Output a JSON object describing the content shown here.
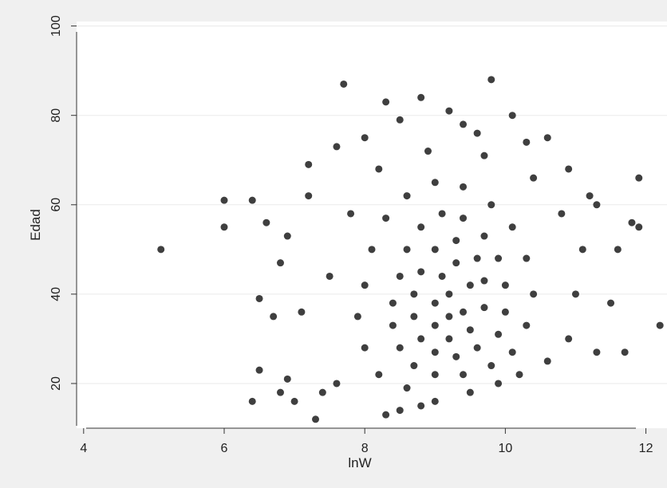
{
  "chart_data": {
    "type": "scatter",
    "title": "",
    "xlabel": "lnW",
    "ylabel": "Edad",
    "xlim": [
      3.9,
      12.3
    ],
    "ylim": [
      10,
      101
    ],
    "xticks": [
      4,
      6,
      8,
      10,
      12
    ],
    "yticks": [
      20,
      40,
      60,
      80,
      100
    ],
    "grid": "horizontal",
    "legend": "none",
    "colors": {
      "marker": "#3f3f3f",
      "plot_bg": "#ffffff",
      "outer_bg": "#f0f0f0",
      "grid": "#eaeaea",
      "axis": "#333333"
    },
    "series": [
      {
        "points": [
          [
            5.1,
            50
          ],
          [
            6.0,
            55
          ],
          [
            6.0,
            61
          ],
          [
            6.4,
            61
          ],
          [
            6.6,
            56
          ],
          [
            6.4,
            16
          ],
          [
            6.5,
            23
          ],
          [
            6.5,
            39
          ],
          [
            6.7,
            35
          ],
          [
            6.8,
            18
          ],
          [
            6.9,
            21
          ],
          [
            6.8,
            47
          ],
          [
            6.9,
            53
          ],
          [
            7.0,
            16
          ],
          [
            7.1,
            36
          ],
          [
            7.2,
            62
          ],
          [
            7.2,
            69
          ],
          [
            7.3,
            12
          ],
          [
            7.7,
            87
          ],
          [
            9.8,
            88
          ],
          [
            8.8,
            84
          ],
          [
            8.3,
            83
          ],
          [
            9.6,
            76
          ],
          [
            10.1,
            80
          ],
          [
            10.3,
            74
          ],
          [
            10.6,
            75
          ],
          [
            10.9,
            68
          ],
          [
            11.2,
            62
          ],
          [
            11.3,
            60
          ],
          [
            11.6,
            50
          ],
          [
            11.8,
            56
          ],
          [
            11.9,
            55
          ],
          [
            11.9,
            66
          ],
          [
            12.2,
            33
          ],
          [
            11.7,
            27
          ],
          [
            11.5,
            38
          ],
          [
            11.3,
            27
          ],
          [
            7.6,
            73
          ],
          [
            8.0,
            75
          ],
          [
            8.5,
            79
          ],
          [
            9.2,
            81
          ],
          [
            9.4,
            78
          ],
          [
            7.4,
            18
          ],
          [
            7.6,
            20
          ],
          [
            8.3,
            13
          ],
          [
            8.5,
            14
          ],
          [
            8.8,
            15
          ],
          [
            7.5,
            44
          ],
          [
            7.8,
            58
          ],
          [
            8.2,
            68
          ],
          [
            8.9,
            72
          ],
          [
            9.7,
            71
          ],
          [
            10.4,
            66
          ],
          [
            10.8,
            58
          ],
          [
            11.1,
            50
          ],
          [
            11.0,
            40
          ],
          [
            10.9,
            30
          ],
          [
            10.6,
            25
          ],
          [
            10.2,
            22
          ],
          [
            9.9,
            20
          ],
          [
            9.5,
            18
          ],
          [
            9.0,
            16
          ],
          [
            8.6,
            19
          ],
          [
            8.2,
            22
          ],
          [
            8.0,
            28
          ],
          [
            7.9,
            35
          ],
          [
            8.0,
            42
          ],
          [
            8.1,
            50
          ],
          [
            8.3,
            57
          ],
          [
            8.6,
            62
          ],
          [
            9.0,
            65
          ],
          [
            9.4,
            64
          ],
          [
            9.8,
            60
          ],
          [
            10.1,
            55
          ],
          [
            10.3,
            48
          ],
          [
            10.4,
            40
          ],
          [
            10.3,
            33
          ],
          [
            10.1,
            27
          ],
          [
            9.8,
            24
          ],
          [
            9.4,
            22
          ],
          [
            9.0,
            22
          ],
          [
            8.7,
            24
          ],
          [
            8.5,
            28
          ],
          [
            8.4,
            33
          ],
          [
            8.4,
            38
          ],
          [
            8.5,
            44
          ],
          [
            8.6,
            50
          ],
          [
            8.8,
            55
          ],
          [
            9.1,
            58
          ],
          [
            9.4,
            57
          ],
          [
            9.7,
            53
          ],
          [
            9.9,
            48
          ],
          [
            10.0,
            42
          ],
          [
            10.0,
            36
          ],
          [
            9.9,
            31
          ],
          [
            9.6,
            28
          ],
          [
            9.3,
            26
          ],
          [
            9.0,
            27
          ],
          [
            8.8,
            30
          ],
          [
            8.7,
            35
          ],
          [
            8.7,
            40
          ],
          [
            8.8,
            45
          ],
          [
            9.0,
            50
          ],
          [
            9.3,
            52
          ],
          [
            9.6,
            48
          ],
          [
            9.7,
            43
          ],
          [
            9.7,
            37
          ],
          [
            9.5,
            32
          ],
          [
            9.2,
            30
          ],
          [
            9.0,
            33
          ],
          [
            9.0,
            38
          ],
          [
            9.1,
            44
          ],
          [
            9.3,
            47
          ],
          [
            9.5,
            42
          ],
          [
            9.4,
            36
          ],
          [
            9.2,
            35
          ],
          [
            9.2,
            40
          ]
        ]
      }
    ]
  }
}
